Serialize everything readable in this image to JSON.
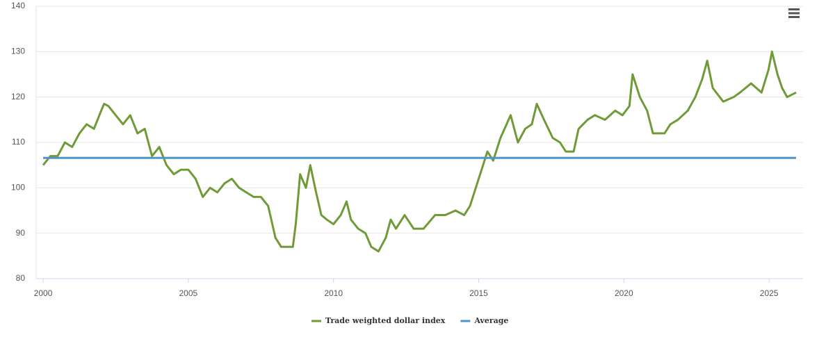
{
  "chart_data": {
    "type": "line",
    "series": [
      {
        "name": "Trade weighted dollar index",
        "color": "#6f9a37",
        "x": [
          2000,
          2000.25,
          2000.5,
          2000.75,
          2001,
          2001.25,
          2001.5,
          2001.75,
          2002,
          2002.1,
          2002.25,
          2002.5,
          2002.75,
          2003,
          2003.25,
          2003.5,
          2003.75,
          2004,
          2004.25,
          2004.5,
          2004.75,
          2005,
          2005.25,
          2005.5,
          2005.75,
          2006,
          2006.25,
          2006.5,
          2006.75,
          2007,
          2007.25,
          2007.5,
          2007.75,
          2008,
          2008.2,
          2008.4,
          2008.6,
          2008.7,
          2008.85,
          2009.05,
          2009.2,
          2009.4,
          2009.58,
          2009.77,
          2010,
          2010.25,
          2010.45,
          2010.6,
          2010.85,
          2011.1,
          2011.3,
          2011.55,
          2011.8,
          2011.97,
          2012.15,
          2012.45,
          2012.76,
          2013.1,
          2013.5,
          2013.85,
          2014.2,
          2014.5,
          2014.7,
          2014.9,
          2015.15,
          2015.3,
          2015.5,
          2015.75,
          2016.1,
          2016.35,
          2016.6,
          2016.83,
          2017,
          2017.25,
          2017.55,
          2017.8,
          2018,
          2018.27,
          2018.44,
          2018.75,
          2019,
          2019.35,
          2019.7,
          2019.95,
          2020.19,
          2020.3,
          2020.55,
          2020.8,
          2021,
          2021.4,
          2021.6,
          2021.86,
          2022.2,
          2022.46,
          2022.7,
          2022.87,
          2023.06,
          2023.42,
          2023.78,
          2024,
          2024.38,
          2024.74,
          2024.98,
          2025.1,
          2025.29,
          2025.45,
          2025.62,
          2025.93
        ],
        "values": [
          105,
          107,
          107,
          110,
          109,
          112,
          114,
          113,
          117,
          118.5,
          118,
          116,
          114,
          116,
          112,
          113,
          107,
          109,
          105,
          103,
          104,
          104,
          102,
          98,
          100,
          99,
          101,
          102,
          100,
          99,
          98,
          98,
          96,
          89,
          87,
          87,
          87,
          92,
          103,
          100,
          105,
          99,
          94,
          93,
          92,
          94,
          97,
          93,
          91,
          90,
          87,
          86,
          89,
          93,
          91,
          94,
          91,
          91,
          94,
          94,
          95,
          94,
          96,
          100,
          105,
          108,
          106,
          111,
          116,
          110,
          113,
          114,
          118.5,
          115,
          111,
          110,
          108,
          108,
          113,
          115,
          116,
          115,
          117,
          116,
          118,
          125,
          120,
          117,
          112,
          112,
          114,
          115,
          117,
          120,
          124,
          128,
          122,
          119,
          120,
          121,
          123,
          121,
          126,
          130,
          125,
          122,
          120,
          121
        ]
      },
      {
        "name": "Average",
        "color": "#4f95c8",
        "x": [
          2000,
          2025.93
        ],
        "values": [
          106.6,
          106.6
        ]
      }
    ],
    "xlim": [
      1999.76,
      2026.17
    ],
    "xticks": [
      2000,
      2005,
      2010,
      2015,
      2020,
      2025
    ],
    "ylim": [
      80,
      140
    ],
    "yticks": [
      80,
      90,
      100,
      110,
      120,
      130,
      140
    ],
    "grid": true,
    "legend": "bottom"
  }
}
